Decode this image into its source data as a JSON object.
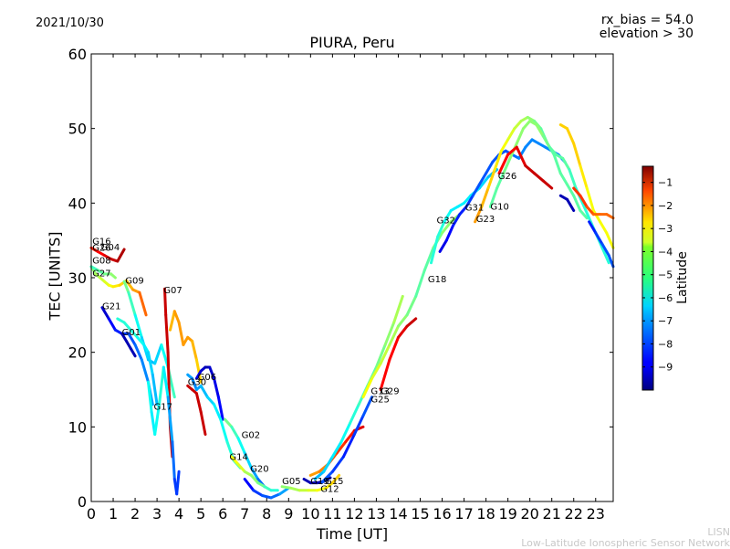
{
  "header": {
    "date": "2021/10/30",
    "rx_bias": "rx_bias = 54.0",
    "elevation": "elevation > 30"
  },
  "footer": {
    "line1": "LISN",
    "line2": "Low-Latitude Ionospheric Sensor Network"
  },
  "chart_data": {
    "type": "scatter",
    "title": "PIURA, Peru",
    "xlabel": "Time [UT]",
    "ylabel": "TEC [UNITS]",
    "xlim": [
      0,
      23.8
    ],
    "ylim": [
      0,
      60
    ],
    "x_ticks": [
      "0",
      "1",
      "2",
      "3",
      "4",
      "5",
      "6",
      "7",
      "8",
      "9",
      "10",
      "11",
      "12",
      "13",
      "14",
      "15",
      "16",
      "17",
      "18",
      "19",
      "20",
      "21",
      "22",
      "23"
    ],
    "y_ticks": [
      "0",
      "10",
      "20",
      "30",
      "40",
      "50",
      "60"
    ],
    "grid": false,
    "colorbar": {
      "label": "Latitude",
      "range": [
        -10,
        -0.3
      ],
      "ticks": [
        "-1",
        "-2",
        "-3",
        "-4",
        "-5",
        "-6",
        "-7",
        "-8",
        "-9"
      ],
      "colormap": "jet",
      "placement": "right"
    },
    "satellite_labels": [
      {
        "name": "G16",
        "x": 0.05,
        "y": 34.5
      },
      {
        "name": "G26",
        "x": 0.05,
        "y": 33.6
      },
      {
        "name": "G04",
        "x": 0.45,
        "y": 33.7
      },
      {
        "name": "G08",
        "x": 0.05,
        "y": 31.9
      },
      {
        "name": "G27",
        "x": 0.05,
        "y": 30.2
      },
      {
        "name": "G09",
        "x": 1.55,
        "y": 29.2
      },
      {
        "name": "G07",
        "x": 3.3,
        "y": 27.9
      },
      {
        "name": "G21",
        "x": 0.5,
        "y": 25.8
      },
      {
        "name": "G01",
        "x": 1.4,
        "y": 22.3
      },
      {
        "name": "G17",
        "x": 2.85,
        "y": 12.3
      },
      {
        "name": "G30",
        "x": 4.4,
        "y": 15.6
      },
      {
        "name": "G06",
        "x": 4.85,
        "y": 16.3
      },
      {
        "name": "G02",
        "x": 6.85,
        "y": 8.5
      },
      {
        "name": "G14",
        "x": 6.3,
        "y": 5.6
      },
      {
        "name": "G20",
        "x": 7.25,
        "y": 4.0
      },
      {
        "name": "G05",
        "x": 8.7,
        "y": 2.3
      },
      {
        "name": "G19",
        "x": 10.0,
        "y": 2.3
      },
      {
        "name": "G15",
        "x": 10.65,
        "y": 2.3
      },
      {
        "name": "G12",
        "x": 10.45,
        "y": 1.3
      },
      {
        "name": "G13",
        "x": 12.75,
        "y": 14.4
      },
      {
        "name": "G29",
        "x": 13.2,
        "y": 14.4
      },
      {
        "name": "G25",
        "x": 12.75,
        "y": 13.3
      },
      {
        "name": "G18",
        "x": 15.35,
        "y": 29.4
      },
      {
        "name": "G32",
        "x": 15.75,
        "y": 37.3
      },
      {
        "name": "G31",
        "x": 17.05,
        "y": 39.0
      },
      {
        "name": "G23",
        "x": 17.55,
        "y": 37.5
      },
      {
        "name": "G10",
        "x": 18.2,
        "y": 39.1
      },
      {
        "name": "G26",
        "x": 18.55,
        "y": 43.2
      }
    ],
    "series": [
      {
        "id": "G04",
        "x": [
          0.0,
          0.2,
          0.4,
          0.6,
          0.8,
          1.0,
          1.3,
          1.6,
          1.9,
          2.2,
          2.5
        ],
        "y": [
          31.5,
          30.5,
          30.0,
          29.5,
          29.0,
          28.8,
          29.0,
          29.6,
          28.4,
          28.0,
          25.0
        ],
        "lat": [
          -5,
          -5,
          -4.5,
          -4.5,
          -4,
          -4,
          -3.5,
          -3.5,
          -3,
          -3,
          -2
        ]
      },
      {
        "id": "G16",
        "x": [
          0.0,
          0.3,
          0.6,
          0.9,
          1.2,
          1.5
        ],
        "y": [
          34.0,
          33.5,
          33.0,
          32.5,
          32.2,
          33.8
        ],
        "lat": [
          -2,
          -1.5,
          -1.5,
          -1,
          -1,
          -0.5
        ]
      },
      {
        "id": "G08",
        "x": [
          0.0,
          0.3,
          0.6,
          0.9,
          1.1
        ],
        "y": [
          31.5,
          31.0,
          30.5,
          30.5,
          30.0
        ],
        "lat": [
          -6,
          -5.5,
          -5.5,
          -5,
          -5
        ]
      },
      {
        "id": "G21",
        "x": [
          0.5,
          0.8,
          1.1,
          1.4,
          1.7,
          2.0,
          2.3,
          2.6,
          2.8
        ],
        "y": [
          26.0,
          24.5,
          23.0,
          22.5,
          22.5,
          21.0,
          19.0,
          16.0,
          13.0
        ],
        "lat": [
          -9.5,
          -9,
          -8.5,
          -8.5,
          -8,
          -8,
          -7.5,
          -7.5,
          -7
        ]
      },
      {
        "id": "G01",
        "x": [
          1.4,
          1.6,
          1.8,
          2.0
        ],
        "y": [
          22.5,
          21.5,
          20.5,
          19.5
        ],
        "lat": [
          -9.5,
          -9.5,
          -9.5,
          -9.5
        ]
      },
      {
        "id": "G09",
        "x": [
          1.5,
          1.7,
          2.0,
          2.3,
          2.6,
          2.9,
          3.2,
          3.5,
          3.8
        ],
        "y": [
          29.5,
          28.0,
          25.0,
          22.0,
          19.0,
          18.5,
          21.0,
          18.0,
          14.0
        ],
        "lat": [
          -5,
          -5.5,
          -6,
          -6.5,
          -7,
          -7,
          -6.5,
          -6,
          -5.5
        ]
      },
      {
        "id": "G27",
        "x": [
          1.2,
          1.5,
          1.8,
          2.1,
          2.4,
          2.6,
          2.8,
          3.0
        ],
        "y": [
          24.5,
          24.0,
          23.0,
          22.0,
          21.0,
          20.0,
          17.0,
          13.0
        ],
        "lat": [
          -6,
          -6,
          -6,
          -6,
          -6.5,
          -6.5,
          -7,
          -7
        ]
      },
      {
        "id": "G07",
        "x": [
          3.35,
          3.4,
          3.5,
          3.55,
          3.6,
          3.7
        ],
        "y": [
          28.5,
          25.0,
          20.0,
          15.0,
          10.0,
          6.0
        ],
        "lat": [
          -1,
          -1,
          -1,
          -1,
          -1,
          -1
        ]
      },
      {
        "id": "G17",
        "x": [
          2.6,
          2.75,
          2.9,
          3.1,
          3.3,
          3.5,
          3.7,
          3.8,
          3.9,
          4.0
        ],
        "y": [
          16.0,
          12.0,
          9.0,
          13.0,
          18.0,
          14.0,
          8.0,
          3.0,
          1.0,
          4.0
        ],
        "lat": [
          -6,
          -6.5,
          -6.5,
          -6,
          -6,
          -7,
          -7.5,
          -8,
          -8.5,
          -8
        ]
      },
      {
        "id": "G07b",
        "x": [
          3.6,
          3.8,
          4.0,
          4.2,
          4.4,
          4.6,
          4.8,
          5.0
        ],
        "y": [
          23.0,
          25.5,
          24.0,
          21.0,
          22.0,
          21.5,
          19.0,
          16.0
        ],
        "lat": [
          -3.5,
          -3,
          -3,
          -3,
          -3,
          -3,
          -3.5,
          -3.5
        ]
      },
      {
        "id": "G30",
        "x": [
          4.4,
          4.6,
          4.8,
          5.0,
          5.2
        ],
        "y": [
          15.5,
          15.0,
          14.5,
          12.0,
          9.0
        ],
        "lat": [
          -1,
          -1,
          -1,
          -1,
          -1
        ]
      },
      {
        "id": "G06",
        "x": [
          4.8,
          5.0,
          5.2,
          5.4,
          5.6,
          5.8,
          6.0
        ],
        "y": [
          16.5,
          17.5,
          18.0,
          18.0,
          16.5,
          14.0,
          11.0
        ],
        "lat": [
          -9,
          -9,
          -9.5,
          -9.5,
          -9,
          -9,
          -8.5
        ]
      },
      {
        "id": "G14",
        "x": [
          4.4,
          4.6,
          4.8,
          5.0,
          5.3,
          5.6,
          5.9,
          6.2,
          6.5,
          6.8
        ],
        "y": [
          17.0,
          16.5,
          15.0,
          15.5,
          14.0,
          13.0,
          11.0,
          8.0,
          5.5,
          4.5
        ],
        "lat": [
          -7,
          -7.5,
          -7.5,
          -7,
          -7,
          -6.5,
          -6.5,
          -6,
          -6,
          -5.5
        ]
      },
      {
        "id": "G02",
        "x": [
          6.1,
          6.4,
          6.7,
          7.0,
          7.3,
          7.6,
          7.9
        ],
        "y": [
          11.0,
          10.0,
          8.5,
          6.5,
          4.5,
          3.0,
          2.0
        ],
        "lat": [
          -5,
          -5.5,
          -6,
          -6.5,
          -7,
          -7.5,
          -8
        ]
      },
      {
        "id": "G20",
        "x": [
          6.4,
          6.7,
          7.0,
          7.3,
          7.6,
          7.9,
          8.2,
          8.5
        ],
        "y": [
          6.0,
          5.0,
          4.0,
          3.5,
          2.5,
          2.0,
          1.5,
          1.5
        ],
        "lat": [
          -4,
          -4,
          -4.5,
          -5,
          -5,
          -5.5,
          -6,
          -6
        ]
      },
      {
        "id": "G05",
        "x": [
          7.0,
          7.4,
          7.8,
          8.2,
          8.6,
          9.0
        ],
        "y": [
          3.0,
          1.5,
          0.8,
          0.5,
          1.0,
          1.8
        ],
        "lat": [
          -9,
          -8.5,
          -8,
          -8,
          -7.5,
          -7
        ]
      },
      {
        "id": "G12",
        "x": [
          8.7,
          9.1,
          9.5,
          9.9,
          10.3,
          10.7,
          11.0,
          11.3
        ],
        "y": [
          2.0,
          1.8,
          1.5,
          1.5,
          1.5,
          1.8,
          2.5,
          3.5
        ],
        "lat": [
          -5,
          -5,
          -4.5,
          -4.5,
          -4,
          -4,
          -3.5,
          -3.5
        ]
      },
      {
        "id": "G19",
        "x": [
          9.7,
          10.0,
          10.3,
          10.6,
          10.9
        ],
        "y": [
          3.0,
          2.5,
          2.5,
          2.7,
          3.2
        ],
        "lat": [
          -9.5,
          -9.5,
          -9.5,
          -9.5,
          -9.5
        ]
      },
      {
        "id": "G15",
        "x": [
          10.0,
          10.4,
          10.8,
          11.2,
          11.6,
          12.0,
          12.4
        ],
        "y": [
          3.5,
          4.0,
          5.0,
          6.5,
          8.0,
          9.5,
          10.0
        ],
        "lat": [
          -3,
          -3,
          -2.5,
          -2,
          -2,
          -1.5,
          -1
        ]
      },
      {
        "id": "G13",
        "x": [
          10.2,
          10.6,
          11.0,
          11.4,
          11.8,
          12.2,
          12.6,
          13.0,
          13.4,
          13.8,
          14.2
        ],
        "y": [
          3.0,
          4.0,
          6.0,
          8.0,
          10.5,
          13.0,
          15.5,
          18.0,
          21.0,
          24.0,
          27.5
        ],
        "lat": [
          -7,
          -7,
          -6.5,
          -6.5,
          -6,
          -6,
          -5.5,
          -5.5,
          -5,
          -5,
          -4.5
        ]
      },
      {
        "id": "G25",
        "x": [
          10.5,
          11.0,
          11.5,
          12.0,
          12.4,
          12.8
        ],
        "y": [
          2.5,
          4.0,
          6.0,
          9.0,
          11.5,
          14.0
        ],
        "lat": [
          -8,
          -8,
          -8.5,
          -8.5,
          -8,
          -8
        ]
      },
      {
        "id": "G29",
        "x": [
          13.2,
          13.6,
          14.0,
          14.4,
          14.8
        ],
        "y": [
          15.0,
          19.0,
          22.0,
          23.5,
          24.5
        ],
        "lat": [
          -1.5,
          -1.5,
          -1.5,
          -1,
          -1
        ]
      },
      {
        "id": "G18",
        "x": [
          12.4,
          12.8,
          13.2,
          13.6,
          14.0,
          14.4,
          14.8,
          15.2,
          15.6,
          16.0,
          16.4,
          16.8
        ],
        "y": [
          14.0,
          16.5,
          18.5,
          21.0,
          23.5,
          25.0,
          27.5,
          31.0,
          34.0,
          36.0,
          37.5,
          38.5
        ],
        "lat": [
          -4,
          -4,
          -4.5,
          -4.5,
          -5,
          -5,
          -5.5,
          -5.5,
          -5.5,
          -5,
          -5,
          -5
        ]
      },
      {
        "id": "G32",
        "x": [
          15.5,
          15.8,
          16.1,
          16.4,
          16.7,
          17.0,
          17.3,
          17.7,
          18.1,
          18.5
        ],
        "y": [
          32.0,
          35.5,
          37.5,
          39.0,
          39.5,
          40.0,
          41.0,
          42.0,
          43.5,
          44.5
        ],
        "lat": [
          -6,
          -6,
          -6,
          -6.5,
          -6.5,
          -6.5,
          -6.5,
          -6.5,
          -7,
          -7
        ]
      },
      {
        "id": "G31",
        "x": [
          15.9,
          16.2,
          16.5,
          16.8,
          17.1,
          17.4,
          17.7,
          18.0,
          18.3,
          18.6,
          18.9,
          19.2,
          19.5,
          19.8,
          20.1,
          20.4,
          20.7,
          21.0,
          21.3,
          21.6
        ],
        "y": [
          33.5,
          35.0,
          37.0,
          38.5,
          39.5,
          41.0,
          42.5,
          44.0,
          45.5,
          46.5,
          47.0,
          46.5,
          46.0,
          47.5,
          48.5,
          48.0,
          47.5,
          47.0,
          46.5,
          45.5
        ],
        "lat": [
          -9,
          -9,
          -8.5,
          -8.5,
          -8.5,
          -8,
          -8,
          -8,
          -8,
          -8,
          -8,
          -8,
          -7.5,
          -7.5,
          -7.5,
          -7.5,
          -7.5,
          -7.5,
          -7.5,
          -7.5
        ]
      },
      {
        "id": "G23",
        "x": [
          17.5,
          17.8,
          18.1,
          18.4,
          18.7,
          19.0,
          19.3,
          19.6,
          19.9,
          20.2,
          20.5,
          20.8,
          21.1,
          21.4,
          21.7,
          22.0,
          22.3,
          22.6
        ],
        "y": [
          37.5,
          39.5,
          42.0,
          44.5,
          47.0,
          48.5,
          50.0,
          51.0,
          51.5,
          51.0,
          50.0,
          48.0,
          46.5,
          44.0,
          42.5,
          41.0,
          39.0,
          38.0
        ],
        "lat": [
          -3,
          -3,
          -3.5,
          -3.5,
          -4,
          -4,
          -4.5,
          -4.5,
          -5,
          -5,
          -5.5,
          -5.5,
          -5.5,
          -5.5,
          -5.5,
          -5.5,
          -5.5,
          -5.5
        ]
      },
      {
        "id": "G10",
        "x": [
          18.2,
          18.5,
          18.8,
          19.1,
          19.4,
          19.7,
          20.0,
          20.3,
          20.6,
          20.9,
          21.2,
          21.5,
          21.8,
          22.1,
          22.4,
          22.7,
          23.0,
          23.3,
          23.6
        ],
        "y": [
          39.5,
          42.0,
          44.0,
          46.0,
          48.0,
          50.0,
          51.0,
          50.5,
          49.0,
          47.5,
          46.5,
          46.0,
          44.5,
          42.0,
          40.0,
          38.0,
          36.0,
          34.0,
          32.0
        ],
        "lat": [
          -5.5,
          -5.5,
          -5.5,
          -5,
          -5,
          -5,
          -5,
          -5,
          -5,
          -5.5,
          -5.5,
          -5.5,
          -5.5,
          -6,
          -6,
          -6,
          -6,
          -6,
          -6
        ]
      },
      {
        "id": "G26",
        "x": [
          18.6,
          19.0,
          19.4,
          19.8,
          20.2,
          20.6,
          21.0
        ],
        "y": [
          44.0,
          46.5,
          47.5,
          45.0,
          44.0,
          43.0,
          42.0
        ],
        "lat": [
          -1.5,
          -1.5,
          -1.5,
          -1,
          -1,
          -1,
          -1
        ]
      },
      {
        "id": "G10b",
        "x": [
          21.4,
          21.7,
          22.0,
          22.3,
          22.6,
          22.9,
          23.2,
          23.5,
          23.8
        ],
        "y": [
          50.5,
          50.0,
          48.0,
          45.0,
          42.0,
          39.0,
          37.5,
          36.0,
          34.0
        ],
        "lat": [
          -3.5,
          -3.5,
          -3.5,
          -3.5,
          -4,
          -4,
          -4,
          -4,
          -4
        ]
      },
      {
        "id": "G16b",
        "x": [
          21.4,
          21.7,
          22.0
        ],
        "y": [
          41.0,
          40.5,
          39.0
        ],
        "lat": [
          -9.5,
          -9.5,
          -9.5
        ]
      },
      {
        "id": "G27b",
        "x": [
          22.0,
          22.3,
          22.6,
          22.9,
          23.2,
          23.5,
          23.8
        ],
        "y": [
          42.0,
          41.0,
          39.5,
          38.5,
          38.5,
          38.5,
          38.0
        ],
        "lat": [
          -2,
          -2,
          -2,
          -2.5,
          -2.5,
          -2.5,
          -2.5
        ]
      },
      {
        "id": "G08b",
        "x": [
          22.7,
          23.0,
          23.3,
          23.6,
          23.8
        ],
        "y": [
          37.5,
          36.0,
          34.5,
          33.0,
          31.5
        ],
        "lat": [
          -8.5,
          -8.5,
          -8,
          -8,
          -8
        ]
      }
    ]
  }
}
